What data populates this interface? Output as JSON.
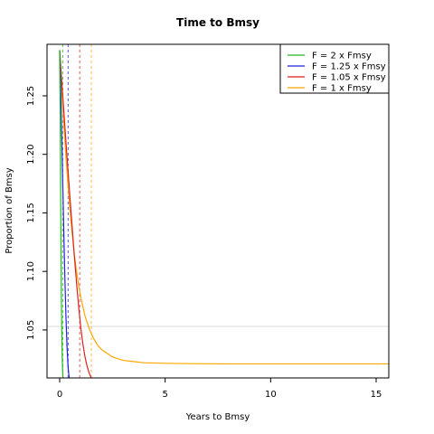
{
  "chart_data": {
    "type": "line",
    "title": "Time to Bmsy",
    "xlabel": "Years to Bmsy",
    "ylabel": "Proportion of Bmsy",
    "xlim": [
      -0.6,
      15.6
    ],
    "ylim": [
      1.009,
      1.294
    ],
    "x_ticks": [
      0,
      5,
      10,
      15
    ],
    "y_ticks": [
      1.05,
      1.1,
      1.15,
      1.2,
      1.25
    ],
    "x_tick_labels": [
      "0",
      "5",
      "10",
      "15"
    ],
    "y_tick_labels": [
      "1.05",
      "1.10",
      "1.15",
      "1.20",
      "1.25"
    ],
    "reference_lines": {
      "horizontal": [
        1.053
      ],
      "horizontal_color": "#d9d9d9"
    },
    "legend_position": "top-right",
    "series": [
      {
        "name": "F = 2 x Fmsy",
        "color": "#22bb22",
        "x": [
          0.0,
          0.02,
          0.04,
          0.06,
          0.08,
          0.1,
          0.12,
          0.14,
          0.16
        ],
        "y": [
          1.289,
          1.24,
          1.185,
          1.13,
          1.078,
          1.048,
          1.028,
          1.015,
          1.009
        ],
        "vline_x": 0.15
      },
      {
        "name": "F = 1.25 x Fmsy",
        "color": "#2222dd",
        "x": [
          0.0,
          0.05,
          0.1,
          0.15,
          0.2,
          0.25,
          0.3,
          0.35,
          0.4,
          0.45
        ],
        "y": [
          1.289,
          1.255,
          1.215,
          1.172,
          1.13,
          1.092,
          1.06,
          1.035,
          1.018,
          1.009
        ],
        "vline_x": 0.4
      },
      {
        "name": "F = 1.05 x Fmsy",
        "color": "#dd2222",
        "x": [
          0.0,
          0.1,
          0.2,
          0.3,
          0.4,
          0.5,
          0.6,
          0.7,
          0.8,
          0.9,
          1.0,
          1.1,
          1.2,
          1.3,
          1.4,
          1.5
        ],
        "y": [
          1.289,
          1.262,
          1.236,
          1.21,
          1.185,
          1.16,
          1.136,
          1.112,
          1.09,
          1.07,
          1.052,
          1.038,
          1.027,
          1.019,
          1.013,
          1.009
        ],
        "vline_x": 0.95
      },
      {
        "name": "F = 1 x Fmsy",
        "color": "#ffa500",
        "x": [
          0.0,
          0.1,
          0.2,
          0.3,
          0.4,
          0.5,
          0.6,
          0.7,
          0.8,
          0.9,
          1.0,
          1.2,
          1.4,
          1.6,
          1.8,
          2.0,
          2.5,
          3.0,
          3.5,
          4.0,
          5.0,
          6.0,
          8.0,
          10.0,
          12.0,
          14.0,
          15.6
        ],
        "y": [
          1.289,
          1.255,
          1.225,
          1.197,
          1.172,
          1.15,
          1.131,
          1.114,
          1.1,
          1.088,
          1.078,
          1.062,
          1.051,
          1.043,
          1.037,
          1.033,
          1.027,
          1.024,
          1.023,
          1.022,
          1.0215,
          1.0212,
          1.021,
          1.021,
          1.021,
          1.021,
          1.021
        ],
        "vline_x": 1.5
      }
    ]
  }
}
